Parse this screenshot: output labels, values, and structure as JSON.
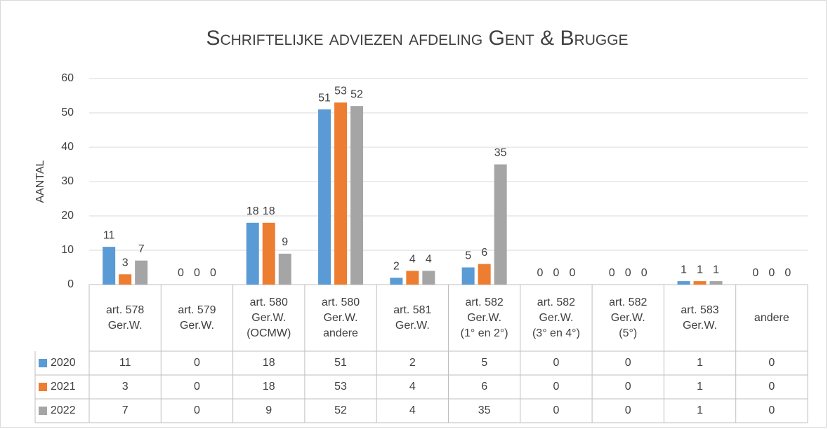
{
  "chart_data": {
    "type": "bar",
    "title": "Schriftelijke adviezen afdeling Gent & Brugge",
    "y_label": "AANTAL",
    "categories": [
      "art. 578\nGer.W.",
      "art. 579\nGer.W.",
      "art. 580\nGer.W.\n(OCMW)",
      "art. 580\nGer.W.\nandere",
      "art. 581\nGer.W.",
      "art. 582\nGer.W.\n(1° en 2°)",
      "art. 582\nGer.W.\n(3° en 4°)",
      "art. 582\nGer.W.\n(5°)",
      "art. 583\nGer.W.",
      "andere"
    ],
    "series": [
      {
        "name": "2020",
        "color": "#5b9bd5",
        "values": [
          11,
          0,
          18,
          51,
          2,
          5,
          0,
          0,
          1,
          0
        ]
      },
      {
        "name": "2021",
        "color": "#ed7d31",
        "values": [
          3,
          0,
          18,
          53,
          4,
          6,
          0,
          0,
          1,
          0
        ]
      },
      {
        "name": "2022",
        "color": "#a5a5a5",
        "values": [
          7,
          0,
          9,
          52,
          4,
          35,
          0,
          0,
          1,
          0
        ]
      }
    ],
    "ylim": [
      0,
      60
    ],
    "yticks": [
      0,
      10,
      20,
      30,
      40,
      50,
      60
    ],
    "grid": true,
    "data_table": true
  }
}
